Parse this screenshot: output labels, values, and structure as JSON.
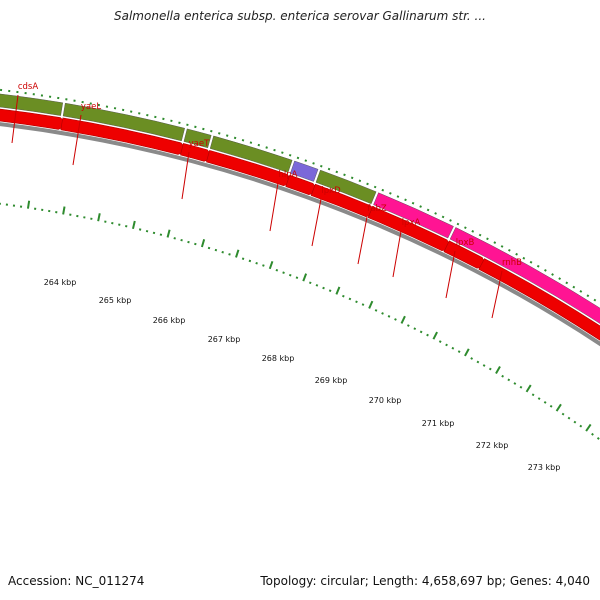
{
  "map": {
    "title": "Salmonella enterica subsp. enterica serovar Gallinarum str. ...",
    "accession_text": "Accession: NC_011274",
    "topology_text": "Topology: circular; Length: 4,658,697 bp; Genes: 4,040"
  },
  "genes": [
    {
      "name": "cdsA",
      "feature_color": "#7b68d9",
      "strand": "+"
    },
    {
      "name": "yaeL",
      "feature_color": "#6b8e23",
      "strand": "+"
    },
    {
      "name": "yaeT",
      "feature_color": "#6b8e23",
      "strand": "+"
    },
    {
      "name": "hlpA",
      "feature_color": "#6b8e23",
      "strand": "+"
    },
    {
      "name": "lpxD",
      "feature_color": "#6b8e23",
      "strand": "+"
    },
    {
      "name": "fabZ",
      "feature_color": "#7b68d9",
      "strand": "+"
    },
    {
      "name": "lpxA",
      "feature_color": "#6b8e23",
      "strand": "+"
    },
    {
      "name": "lpxB",
      "feature_color": "#ff1493",
      "strand": "+"
    },
    {
      "name": "rnhB",
      "feature_color": "#ff1493",
      "strand": "+"
    }
  ],
  "scale_labels": [
    "264 kbp",
    "265 kbp",
    "266 kbp",
    "267 kbp",
    "268 kbp",
    "269 kbp",
    "270 kbp",
    "271 kbp",
    "272 kbp",
    "273 kbp"
  ],
  "colors": {
    "cds": "#ee0000",
    "backbone": "#888888",
    "tick": "#2e8b2e",
    "label": "#cc0000"
  }
}
